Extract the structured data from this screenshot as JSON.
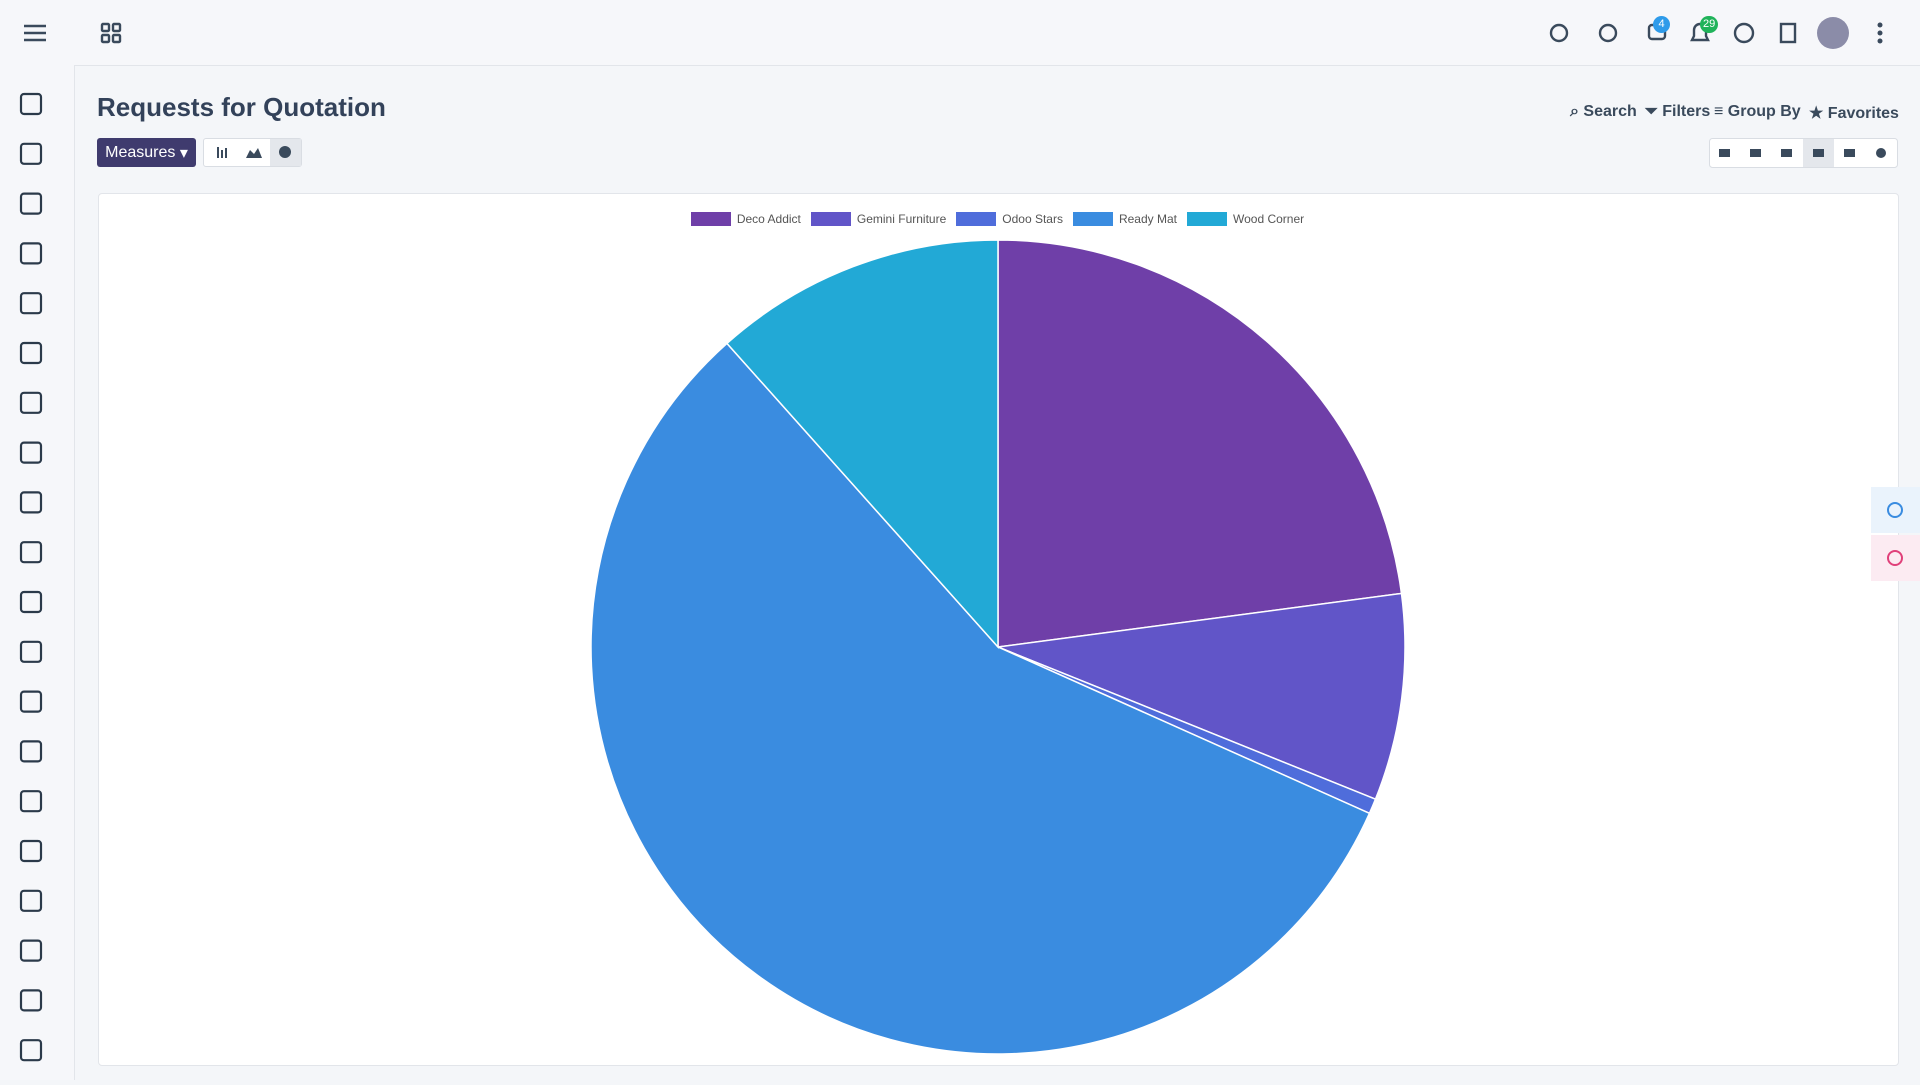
{
  "header": {
    "title": "Requests for Quotation",
    "measures": "Measures",
    "search": "Search",
    "filters": "Filters",
    "group_by": "Group By",
    "favorites": "Favorites",
    "badges": [
      "4",
      "29"
    ]
  },
  "chart_data": {
    "type": "pie",
    "categories": [
      "Deco Addict",
      "Gemini Furniture",
      "Odoo Stars",
      "Ready Mat",
      "Wood Corner"
    ],
    "values": [
      22.9,
      8.2,
      0.6,
      56.7,
      11.6
    ],
    "colors": [
      "#6f3fa8",
      "#6155c8",
      "#4f6ddb",
      "#3a8ce0",
      "#22a9d6"
    ],
    "legend": "top"
  }
}
